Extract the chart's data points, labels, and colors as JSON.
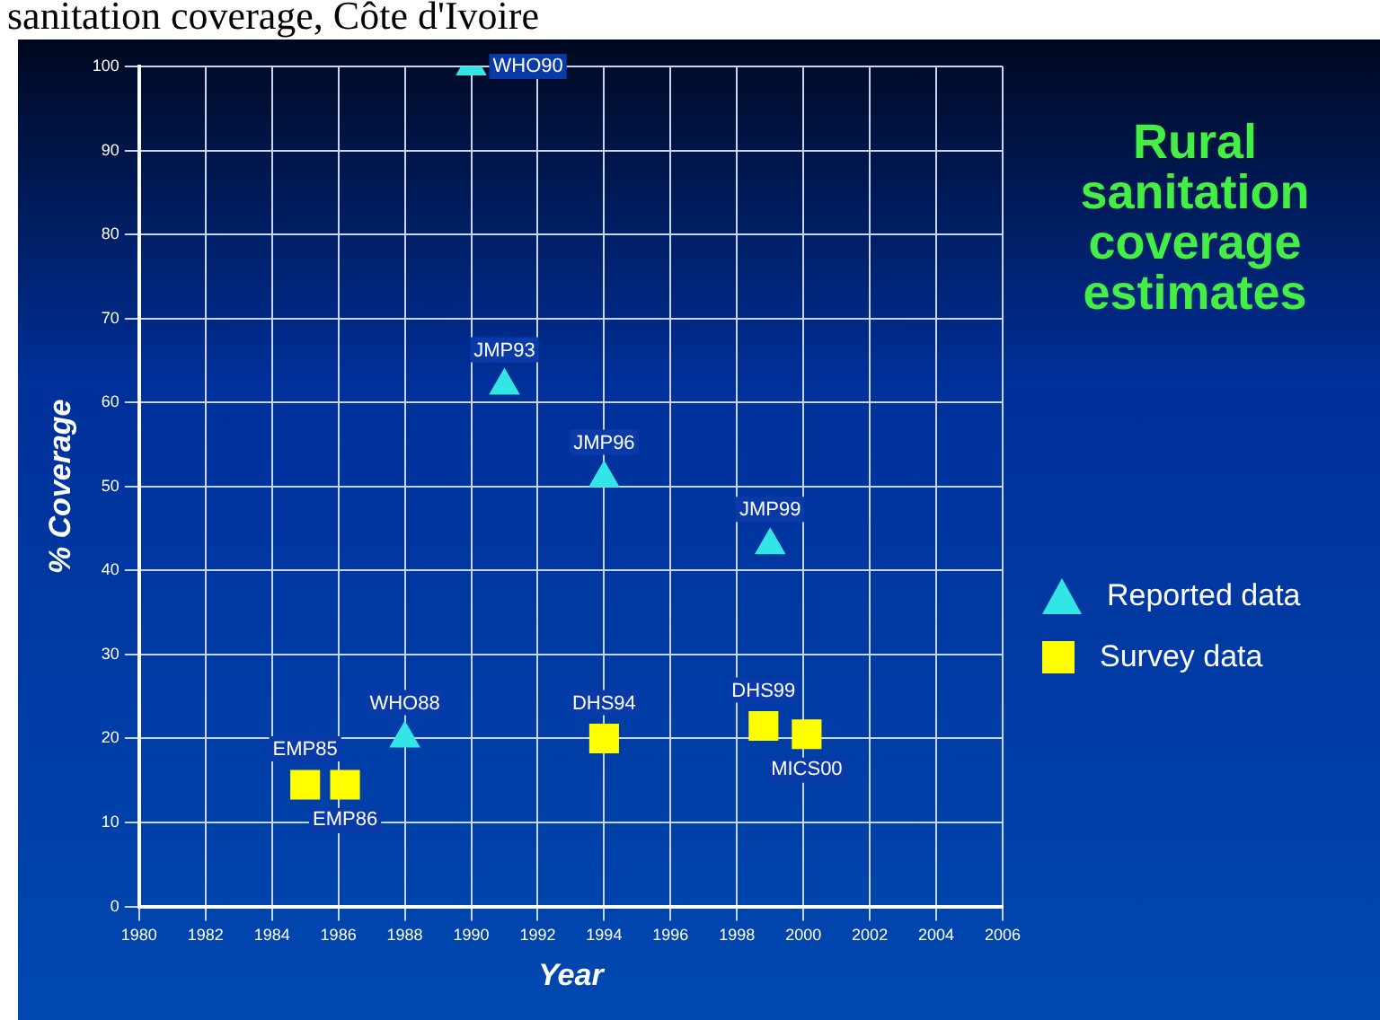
{
  "chart_data": {
    "type": "scatter",
    "title": "Rural sanitation coverage estimates",
    "xlabel": "Year",
    "ylabel": "% Coverage",
    "xlim": [
      1980,
      2006
    ],
    "xticks": [
      1980,
      1982,
      1984,
      1986,
      1988,
      1990,
      1992,
      1994,
      1996,
      1998,
      2000,
      2002,
      2004,
      2006
    ],
    "ylim": [
      0,
      100
    ],
    "yticks": [
      0,
      10,
      20,
      30,
      40,
      50,
      60,
      70,
      80,
      90,
      100
    ],
    "grid": true,
    "legend": "right",
    "series": [
      {
        "name": "Reported data",
        "color": "#33e6e6",
        "marker": "triangle",
        "x": [
          1988,
          1990,
          1991,
          1994,
          1999
        ],
        "values": [
          20,
          100,
          62,
          51,
          43
        ]
      },
      {
        "name": "Survey data",
        "color": "#ffff00",
        "marker": "square",
        "x": [
          1985,
          1986.2,
          1994,
          1998.8,
          2000.1
        ],
        "values": [
          14.5,
          14.5,
          20,
          21.5,
          20.5
        ]
      }
    ],
    "annotations": [
      "sanitation coverage, Côte d'Ivoire",
      {
        "text": "WHO88",
        "x": 1988,
        "y": 20
      },
      {
        "text": "WHO90",
        "x": 1990,
        "y": 100
      },
      {
        "text": "JMP93",
        "x": 1991,
        "y": 62
      },
      {
        "text": "JMP96",
        "x": 1994,
        "y": 51
      },
      {
        "text": "JMP99",
        "x": 1999,
        "y": 43
      },
      {
        "text": "EMP85",
        "x": 1985,
        "y": 14.5
      },
      {
        "text": "EMP86",
        "x": 1986.2,
        "y": 14.5
      },
      {
        "text": "DHS94",
        "x": 1994,
        "y": 20
      },
      {
        "text": "DHS99",
        "x": 1998.8,
        "y": 21.5
      },
      {
        "text": "MICS00",
        "x": 2000.1,
        "y": 20.5
      }
    ]
  }
}
